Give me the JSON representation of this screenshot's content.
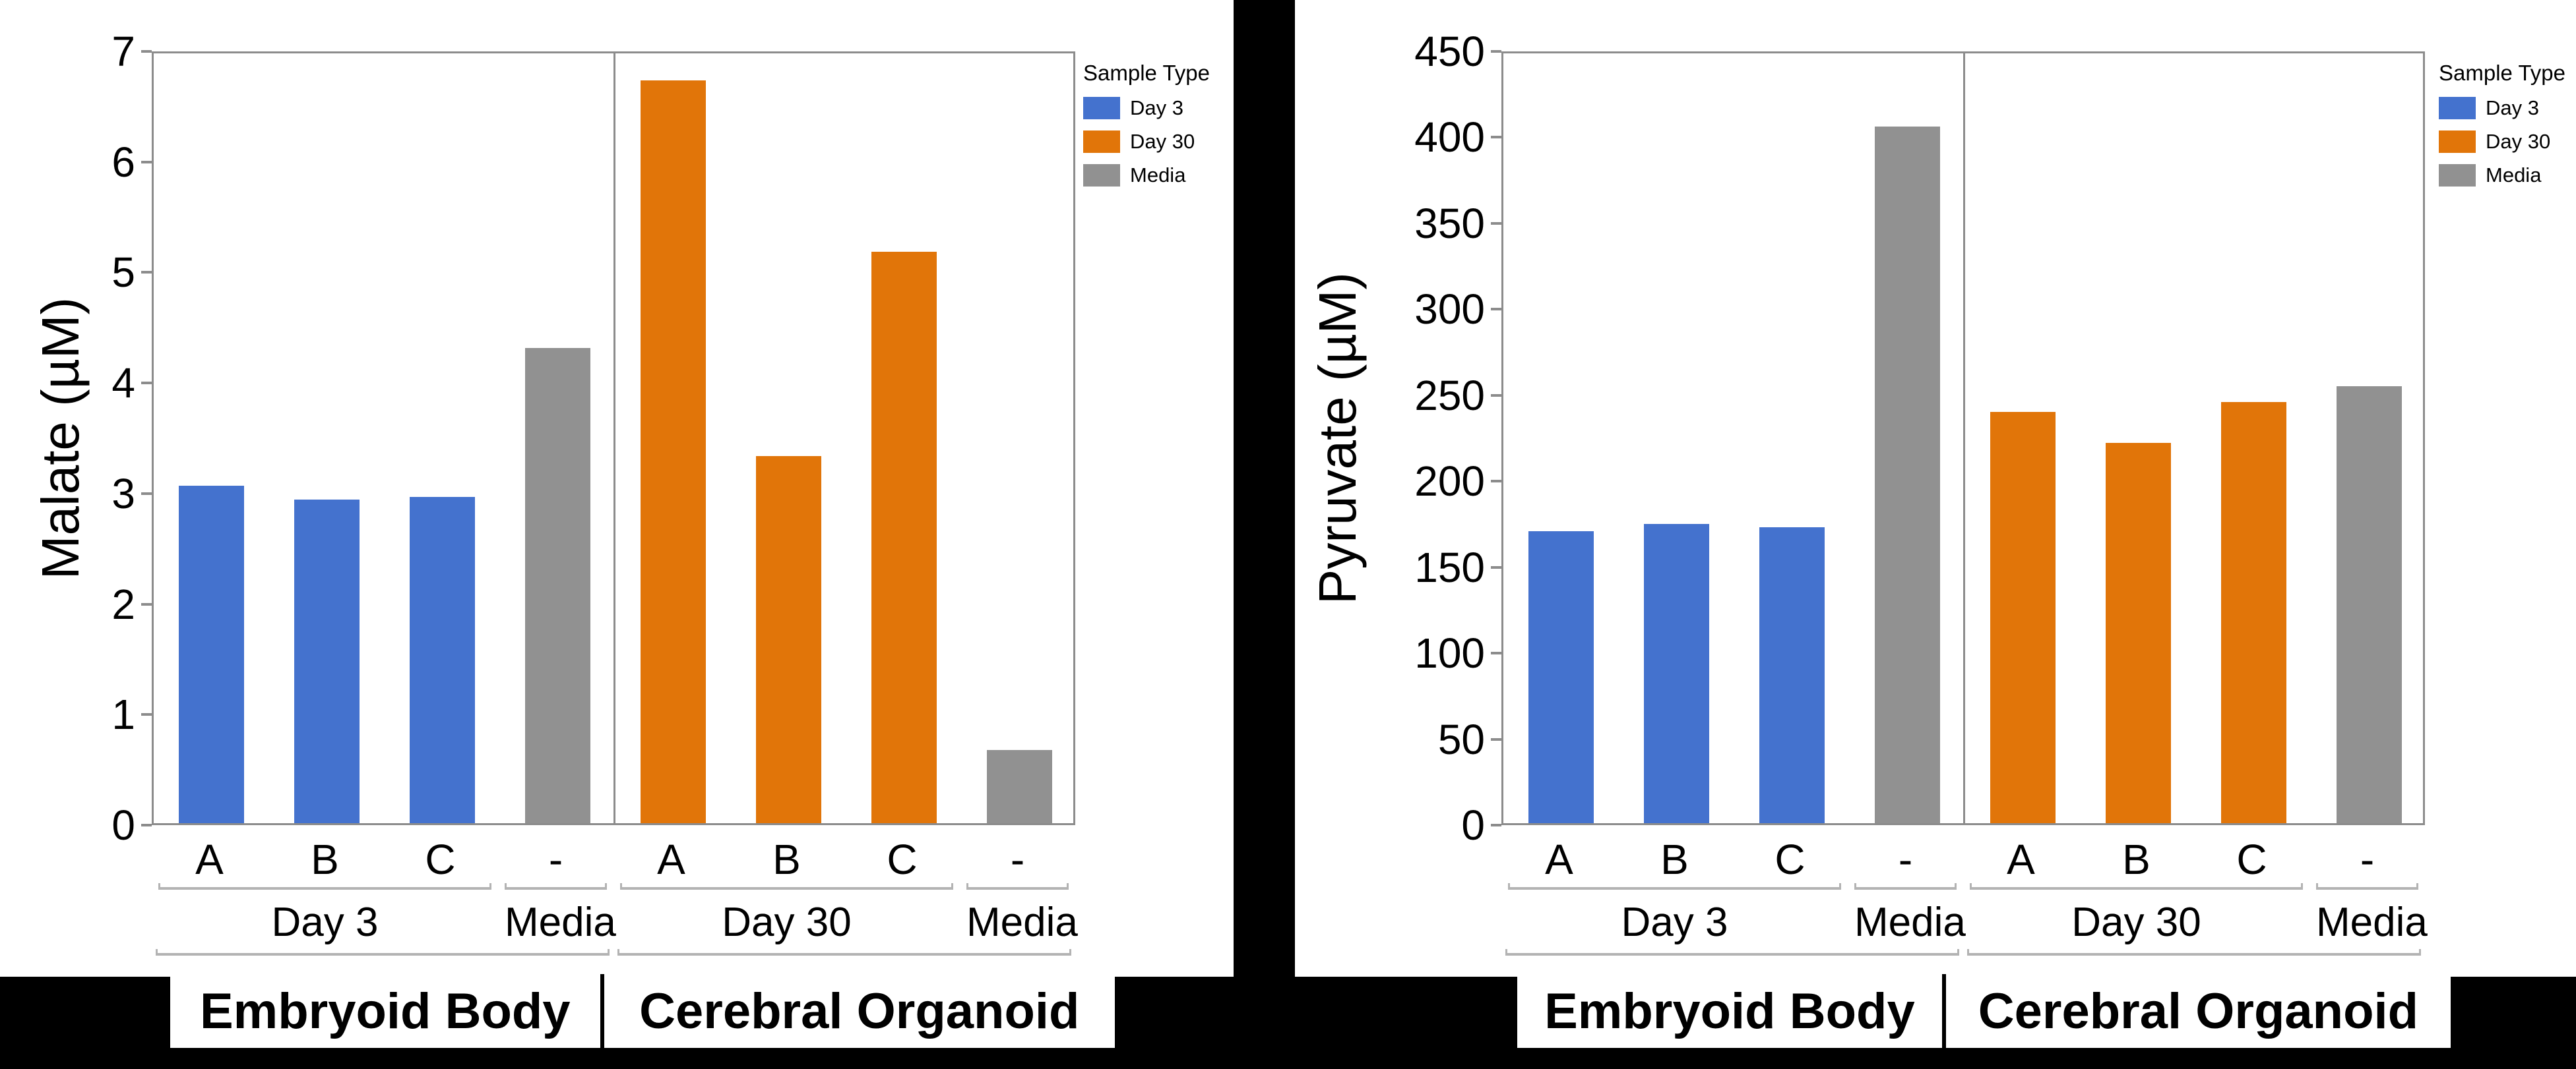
{
  "page": {
    "background_color": "#000000",
    "panel_color": "#ffffff"
  },
  "legend": {
    "title": "Sample Type",
    "position": "right",
    "items": [
      {
        "label": "Day 3",
        "color": "#4472CE"
      },
      {
        "label": "Day 30",
        "color": "#E17509"
      },
      {
        "label": "Media",
        "color": "#919191"
      }
    ]
  },
  "chart_data": [
    {
      "type": "bar",
      "title": "",
      "xlabel": "",
      "ylabel": "Malate (µM)",
      "ylim": [
        0,
        7
      ],
      "ytick_step": 1,
      "grid": false,
      "categories": [
        "A",
        "B",
        "C",
        "-",
        "A",
        "B",
        "C",
        "-"
      ],
      "bars": [
        {
          "category": "A",
          "sample": "Day 3",
          "value": 3.05
        },
        {
          "category": "B",
          "sample": "Day 3",
          "value": 2.93
        },
        {
          "category": "C",
          "sample": "Day 3",
          "value": 2.95
        },
        {
          "category": "-",
          "sample": "Media",
          "value": 4.3
        },
        {
          "category": "A",
          "sample": "Day 30",
          "value": 6.72
        },
        {
          "category": "B",
          "sample": "Day 30",
          "value": 3.32
        },
        {
          "category": "C",
          "sample": "Day 30",
          "value": 5.17
        },
        {
          "category": "-",
          "sample": "Media",
          "value": 0.66
        }
      ],
      "groups_level2": [
        {
          "label": "Day 3",
          "span": [
            0,
            2
          ]
        },
        {
          "label": "Media",
          "span": [
            3,
            3
          ]
        },
        {
          "label": "Day 30",
          "span": [
            4,
            6
          ]
        },
        {
          "label": "Media",
          "span": [
            7,
            7
          ]
        }
      ],
      "groups_level3": [
        {
          "label": "Embryoid Body",
          "span": [
            0,
            3
          ]
        },
        {
          "label": "Cerebral Organoid",
          "span": [
            4,
            7
          ]
        }
      ]
    },
    {
      "type": "bar",
      "title": "",
      "xlabel": "",
      "ylabel": "Pyruvate (µM)",
      "ylim": [
        0,
        450
      ],
      "ytick_step": 50,
      "grid": false,
      "categories": [
        "A",
        "B",
        "C",
        "-",
        "A",
        "B",
        "C",
        "-"
      ],
      "bars": [
        {
          "category": "A",
          "sample": "Day 3",
          "value": 170
        },
        {
          "category": "B",
          "sample": "Day 3",
          "value": 174
        },
        {
          "category": "C",
          "sample": "Day 3",
          "value": 172
        },
        {
          "category": "-",
          "sample": "Media",
          "value": 405
        },
        {
          "category": "A",
          "sample": "Day 30",
          "value": 239
        },
        {
          "category": "B",
          "sample": "Day 30",
          "value": 221
        },
        {
          "category": "C",
          "sample": "Day 30",
          "value": 245
        },
        {
          "category": "-",
          "sample": "Media",
          "value": 254
        }
      ],
      "groups_level2": [
        {
          "label": "Day 3",
          "span": [
            0,
            2
          ]
        },
        {
          "label": "Media",
          "span": [
            3,
            3
          ]
        },
        {
          "label": "Day 30",
          "span": [
            4,
            6
          ]
        },
        {
          "label": "Media",
          "span": [
            7,
            7
          ]
        }
      ],
      "groups_level3": [
        {
          "label": "Embryoid Body",
          "span": [
            0,
            3
          ]
        },
        {
          "label": "Cerebral Organoid",
          "span": [
            4,
            7
          ]
        }
      ]
    }
  ]
}
